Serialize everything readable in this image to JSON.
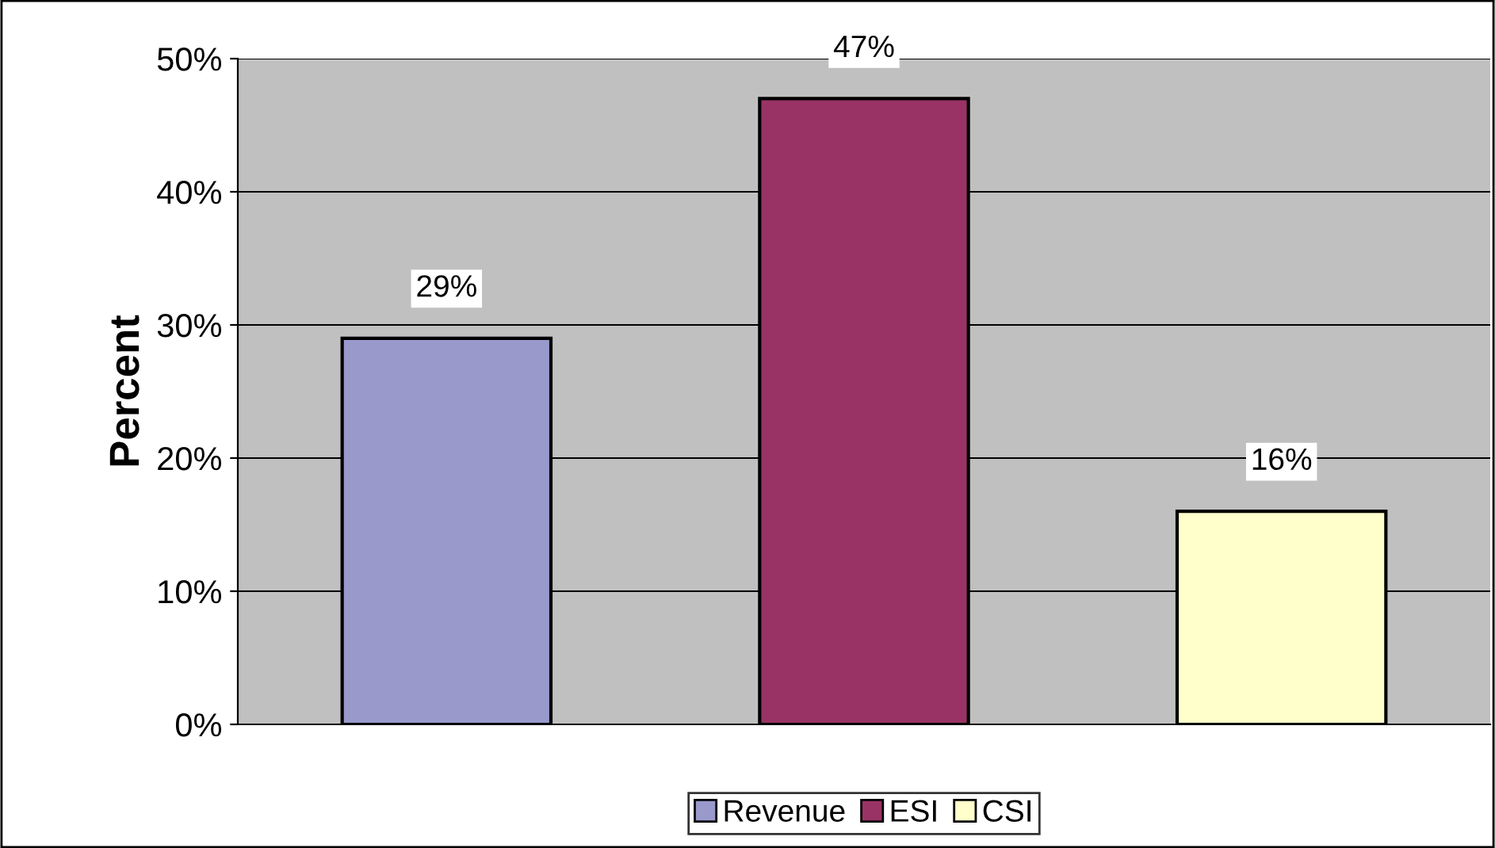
{
  "chart_data": {
    "type": "bar",
    "ylabel": "Percent",
    "categories": [
      null,
      null,
      null
    ],
    "series": [
      {
        "name": "Revenue",
        "color": "#9999cc",
        "values": [
          29,
          null,
          null
        ],
        "value_labels": [
          "29%",
          null,
          null
        ]
      },
      {
        "name": "ESI",
        "color": "#993366",
        "values": [
          null,
          47,
          null
        ],
        "value_labels": [
          null,
          "47%",
          null
        ]
      },
      {
        "name": "CSI",
        "color": "#ffffcc",
        "values": [
          null,
          null,
          16
        ],
        "value_labels": [
          null,
          null,
          "16%"
        ]
      }
    ],
    "ylim": [
      0,
      50
    ],
    "yticks": [
      {
        "value": 0,
        "label": "0%"
      },
      {
        "value": 10,
        "label": "10%"
      },
      {
        "value": 20,
        "label": "20%"
      },
      {
        "value": 30,
        "label": "30%"
      },
      {
        "value": 40,
        "label": "40%"
      },
      {
        "value": 50,
        "label": "50%"
      }
    ],
    "grid": "y",
    "legend": "bottom"
  }
}
